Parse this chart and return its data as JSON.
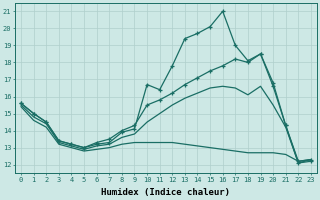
{
  "xlabel": "Humidex (Indice chaleur)",
  "background_color": "#cde8e5",
  "grid_color": "#b0cfcc",
  "line_color": "#1a6e65",
  "xlim": [
    -0.5,
    23.5
  ],
  "ylim": [
    11.5,
    21.5
  ],
  "xticks": [
    0,
    1,
    2,
    3,
    4,
    5,
    6,
    7,
    8,
    9,
    10,
    11,
    12,
    13,
    14,
    15,
    16,
    17,
    18,
    19,
    20,
    21,
    22,
    23
  ],
  "yticks": [
    12,
    13,
    14,
    15,
    16,
    17,
    18,
    19,
    20,
    21
  ],
  "line1_x": [
    0,
    1,
    2,
    3,
    4,
    5,
    6,
    7,
    8,
    9,
    10,
    11,
    12,
    13,
    14,
    15,
    16,
    17,
    18,
    19,
    20,
    21,
    22,
    23
  ],
  "line1_y": [
    15.6,
    15.0,
    14.5,
    13.4,
    13.2,
    13.0,
    13.2,
    13.3,
    13.9,
    14.1,
    16.7,
    16.4,
    17.8,
    19.4,
    19.7,
    20.1,
    21.0,
    19.0,
    18.1,
    18.5,
    16.8,
    14.3,
    12.1,
    12.2
  ],
  "line2_x": [
    0,
    1,
    2,
    3,
    4,
    5,
    6,
    7,
    8,
    9,
    10,
    11,
    12,
    13,
    14,
    15,
    16,
    17,
    18,
    19,
    20,
    21,
    22,
    23
  ],
  "line2_y": [
    15.6,
    15.0,
    14.5,
    13.4,
    13.2,
    13.0,
    13.3,
    13.5,
    14.0,
    14.3,
    15.5,
    15.8,
    16.2,
    16.7,
    17.1,
    17.5,
    17.8,
    18.2,
    18.0,
    18.5,
    16.6,
    14.3,
    12.2,
    12.3
  ],
  "line3_x": [
    0,
    1,
    2,
    3,
    4,
    5,
    6,
    7,
    8,
    9,
    10,
    11,
    12,
    13,
    14,
    15,
    16,
    17,
    18,
    19,
    20,
    21,
    22,
    23
  ],
  "line3_y": [
    15.5,
    14.8,
    14.4,
    13.3,
    13.1,
    12.9,
    13.1,
    13.2,
    13.6,
    13.8,
    14.5,
    15.0,
    15.5,
    15.9,
    16.2,
    16.5,
    16.6,
    16.5,
    16.1,
    16.6,
    15.5,
    14.2,
    12.1,
    12.3
  ],
  "line4_x": [
    0,
    1,
    2,
    3,
    4,
    5,
    6,
    7,
    8,
    9,
    10,
    11,
    12,
    13,
    14,
    15,
    16,
    17,
    18,
    19,
    20,
    21,
    22,
    23
  ],
  "line4_y": [
    15.4,
    14.6,
    14.2,
    13.2,
    13.0,
    12.8,
    12.9,
    13.0,
    13.2,
    13.3,
    13.3,
    13.3,
    13.3,
    13.2,
    13.1,
    13.0,
    12.9,
    12.8,
    12.7,
    12.7,
    12.7,
    12.6,
    12.2,
    12.3
  ]
}
